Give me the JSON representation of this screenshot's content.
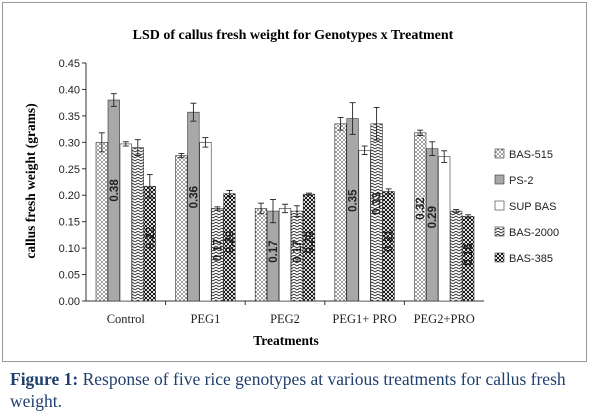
{
  "chart_data": {
    "type": "bar",
    "title": "LSD of callus fresh weight for Genotypes x Treatment",
    "xlabel": "Treatments",
    "ylabel": "callus fresh weight  (grams)",
    "ylim": [
      0,
      0.45
    ],
    "yticks": [
      "0.00",
      "0.05",
      "0.10",
      "0.15",
      "0.20",
      "0.25",
      "0.30",
      "0.35",
      "0.40",
      "0.45"
    ],
    "categories": [
      "Control",
      "PEG1",
      "PEG2",
      "PEG1+ PRO",
      "PEG2+PRO"
    ],
    "legend_position": "right",
    "grid": false,
    "series": [
      {
        "name": "BAS-515",
        "pattern": "dots",
        "values": [
          0.3,
          0.275,
          0.175,
          0.335,
          0.318
        ],
        "errors": [
          0.018,
          0.004,
          0.01,
          0.012,
          0.005
        ]
      },
      {
        "name": "PS-2",
        "pattern": "gray",
        "values": [
          0.38,
          0.357,
          0.17,
          0.345,
          0.288
        ],
        "errors": [
          0.012,
          0.017,
          0.022,
          0.03,
          0.013
        ]
      },
      {
        "name": "SUP BAS",
        "pattern": "white",
        "values": [
          0.297,
          0.3,
          0.175,
          0.285,
          0.273
        ],
        "errors": [
          0.004,
          0.009,
          0.008,
          0.008,
          0.011
        ]
      },
      {
        "name": "BAS-2000",
        "pattern": "wave",
        "values": [
          0.29,
          0.175,
          0.17,
          0.335,
          0.17
        ],
        "errors": [
          0.015,
          0.003,
          0.01,
          0.031,
          0.003
        ]
      },
      {
        "name": "BAS-385",
        "pattern": "checker",
        "values": [
          0.217,
          0.203,
          0.202,
          0.207,
          0.16
        ],
        "errors": [
          0.022,
          0.006,
          0.002,
          0.005,
          0.003
        ]
      }
    ],
    "data_labels": [
      {
        "category": 0,
        "series": 1,
        "text": "0.38"
      },
      {
        "category": 0,
        "series": 4,
        "text": "0.22"
      },
      {
        "category": 1,
        "series": 1,
        "text": "0.36"
      },
      {
        "category": 1,
        "series": 3,
        "text": "0.17"
      },
      {
        "category": 1,
        "series": 4,
        "text": "0.20"
      },
      {
        "category": 2,
        "series": 1,
        "text": "0.17"
      },
      {
        "category": 2,
        "series": 3,
        "text": "0.17"
      },
      {
        "category": 2,
        "series": 4,
        "text": "0.20"
      },
      {
        "category": 3,
        "series": 1,
        "text": "0.35"
      },
      {
        "category": 3,
        "series": 3,
        "text": "0.33"
      },
      {
        "category": 3,
        "series": 4,
        "text": "0.21"
      },
      {
        "category": 4,
        "series": 0,
        "text": "0.32"
      },
      {
        "category": 4,
        "series": 1,
        "text": "0.29"
      },
      {
        "category": 4,
        "series": 4,
        "text": "0.16"
      }
    ]
  },
  "caption": {
    "label": "Figure 1:",
    "text": " Response of five rice genotypes at various treatments for callus fresh weight."
  }
}
